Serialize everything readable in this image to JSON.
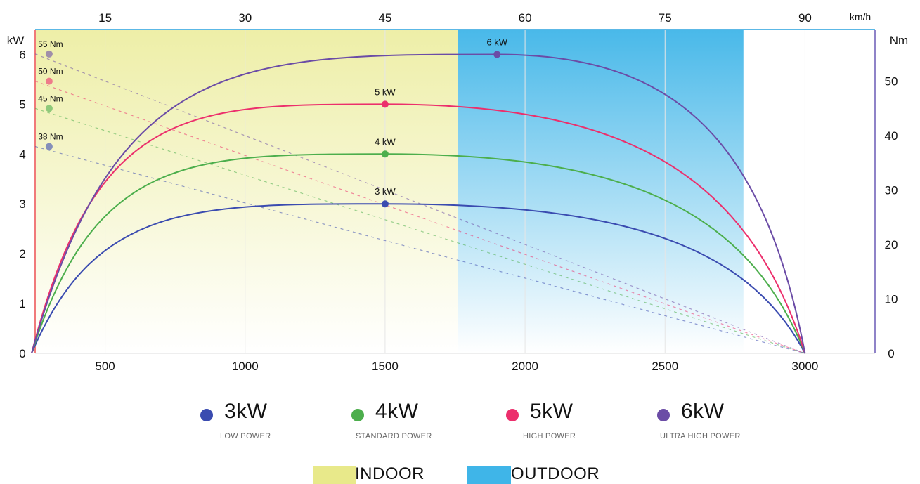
{
  "chart_data": {
    "type": "line",
    "x": [
      300,
      500,
      1000,
      1500,
      2000,
      2500,
      3000
    ],
    "xlim": [
      250,
      3250
    ],
    "x_ticks": [
      "500",
      "1000",
      "1500",
      "2000",
      "2500",
      "3000"
    ],
    "x_tick_values": [
      500,
      1000,
      1500,
      2000,
      2500,
      3000
    ],
    "speed_axis": {
      "unit": "km/h",
      "ticks": [
        "15",
        "30",
        "45",
        "60",
        "75",
        "90"
      ],
      "tick_values": [
        500,
        1000,
        1500,
        2000,
        2500,
        3000
      ]
    },
    "y_left": {
      "label": "kW",
      "ylim": [
        0,
        6.5
      ],
      "ticks": [
        "0",
        "1",
        "2",
        "3",
        "4",
        "5",
        "6"
      ],
      "tick_values": [
        0,
        1,
        2,
        3,
        4,
        5,
        6
      ]
    },
    "y_right": {
      "label": "Nm",
      "ylim": [
        0,
        59.5
      ],
      "ticks": [
        "0",
        "10",
        "20",
        "30",
        "40",
        "50"
      ],
      "tick_values": [
        0,
        10,
        20,
        30,
        40,
        50
      ]
    },
    "series": [
      {
        "name": "3kW",
        "subtitle": "LOW POWER",
        "color": "#3a4bb0",
        "peak_rpm": 1500,
        "peak_kw": 3,
        "peak_label": "3 kW",
        "values": [
          0,
          1.6,
          2.7,
          3.0,
          2.85,
          2.0,
          0
        ],
        "torque_label": "38 Nm",
        "torque_nm": 38
      },
      {
        "name": "4kW",
        "subtitle": "STANDARD POWER",
        "color": "#4cae4c",
        "peak_rpm": 1500,
        "peak_kw": 4,
        "peak_label": "4 kW",
        "values": [
          0,
          2.2,
          3.6,
          4.0,
          3.75,
          2.6,
          0
        ],
        "torque_label": "45 Nm",
        "torque_nm": 45
      },
      {
        "name": "5kW",
        "subtitle": "HIGH POWER",
        "color": "#ec2f6c",
        "peak_rpm": 1500,
        "peak_kw": 5,
        "peak_label": "5 kW",
        "values": [
          0,
          2.8,
          4.5,
          5.0,
          4.65,
          3.3,
          0
        ],
        "torque_label": "50 Nm",
        "torque_nm": 50
      },
      {
        "name": "6kW",
        "subtitle": "ULTRA HIGH POWER",
        "color": "#6b4ca6",
        "peak_rpm": 1900,
        "peak_kw": 6,
        "peak_label": "6 kW",
        "values": [
          0,
          3.0,
          5.1,
          5.75,
          5.95,
          4.8,
          0
        ],
        "torque_label": "55 Nm",
        "torque_nm": 55
      }
    ],
    "zones": [
      {
        "name": "INDOOR",
        "color": "#e8e98a",
        "from_rpm": 250,
        "to_rpm": 1760
      },
      {
        "name": "OUTDOOR",
        "color": "#3fb5e8",
        "from_rpm": 1760,
        "to_rpm": 2780
      }
    ],
    "legend_position": "bottom",
    "grid": "vertical"
  },
  "legend": {
    "items": [
      {
        "big": "3kW",
        "sub": "LOW POWER",
        "color": "#3a4bb0"
      },
      {
        "big": "4kW",
        "sub": "STANDARD POWER",
        "color": "#4cae4c"
      },
      {
        "big": "5kW",
        "sub": "HIGH POWER",
        "color": "#ec2f6c"
      },
      {
        "big": "6kW",
        "sub": "ULTRA HIGH POWER",
        "color": "#6b4ca6"
      }
    ],
    "zones": [
      {
        "label": "INDOOR",
        "color": "#e8e98a"
      },
      {
        "label": "OUTDOOR",
        "color": "#3fb5e8"
      }
    ]
  },
  "colors": {
    "left_axis": "#f07a7a",
    "right_axis": "#8f83c8",
    "top_axis": "#5cb8e6",
    "grid": "#e6e6e6",
    "text": "#111111"
  }
}
